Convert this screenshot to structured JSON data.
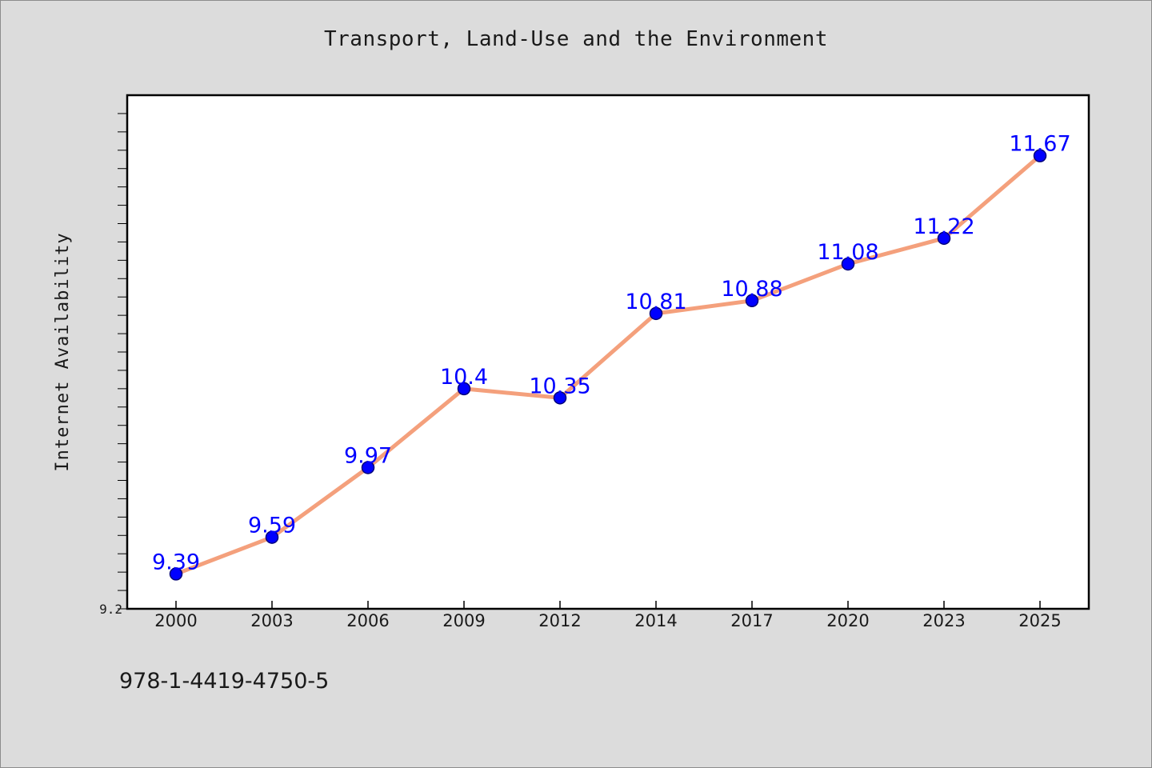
{
  "chart_data": {
    "type": "line",
    "title": "Transport, Land-Use and the Environment",
    "xlabel": "",
    "ylabel": "Internet Availability",
    "categories": [
      "2000",
      "2003",
      "2006",
      "2009",
      "2012",
      "2014",
      "2017",
      "2020",
      "2023",
      "2025"
    ],
    "series": [
      {
        "values": [
          9.39,
          9.59,
          9.97,
          10.4,
          10.35,
          10.81,
          10.88,
          11.08,
          11.22,
          11.67
        ],
        "data_labels": [
          "9.39",
          "9.59",
          "9.97",
          "10.4",
          "10.35",
          "10.81",
          "10.88",
          "11.08",
          "11.22",
          "11.67"
        ]
      }
    ],
    "ylim": [
      9.2,
      12.0
    ],
    "y_tick_labels": [
      "9.2"
    ],
    "grid": false,
    "legend": "none",
    "colors": {
      "line": "#f4a07c",
      "marker": "#0000ff",
      "marker_edge": "#00007a",
      "label": "#0000ff",
      "plot_background": "#ffffff",
      "page_background": "#dcdcdc"
    }
  },
  "footer": {
    "code": "978-1-4419-4750-5"
  }
}
